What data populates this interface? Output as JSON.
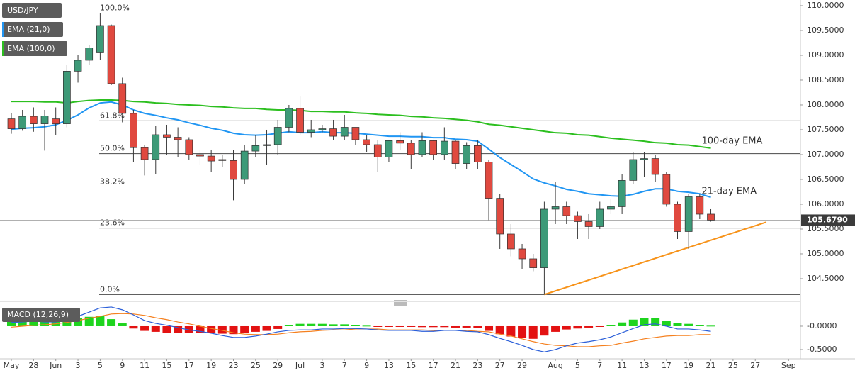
{
  "chart_data": [
    {
      "type": "candlestick",
      "title": "USD/JPY",
      "up_color": "#3d9a78",
      "down_color": "#e0493f",
      "wick_color": "#3a3a3a",
      "ylim": [
        104.114,
        110.114
      ],
      "yticks": [
        {
          "value": 110,
          "label": "110.0000"
        },
        {
          "value": 109.5,
          "label": "109.5000"
        },
        {
          "value": 109,
          "label": "109.0000"
        },
        {
          "value": 108.5,
          "label": "108.5000"
        },
        {
          "value": 108,
          "label": "108.0000"
        },
        {
          "value": 107.5,
          "label": "107.5000"
        },
        {
          "value": 107,
          "label": "107.0000"
        },
        {
          "value": 106.5,
          "label": "106.5000"
        },
        {
          "value": 106,
          "label": "106.0000"
        },
        {
          "value": 105.5,
          "label": "105.5000"
        },
        {
          "value": 105,
          "label": "105.0000"
        },
        {
          "value": 104.5,
          "label": "104.5000"
        }
      ],
      "last_price": {
        "value": 105.679,
        "label": "105.6790"
      },
      "open": [
        107.72,
        107.52,
        107.77,
        107.62,
        107.72,
        107.62,
        108.68,
        108.9,
        109.05,
        109.6,
        108.43,
        107.83,
        107.14,
        106.9,
        107.4,
        107.35,
        107.3,
        107.0,
        106.97,
        106.9,
        106.88,
        106.5,
        107.07,
        107.18,
        107.2,
        107.55,
        107.93,
        107.45,
        107.5,
        107.52,
        107.37,
        107.55,
        107.3,
        107.2,
        106.95,
        107.28,
        107.23,
        107.0,
        107.28,
        107.0,
        107.27,
        106.82,
        107.18,
        106.85,
        106.12,
        105.4,
        105.1,
        104.9,
        104.72,
        105.9,
        105.95,
        105.77,
        105.65,
        105.55,
        105.9,
        105.95,
        106.48,
        106.9,
        106.92,
        106.6,
        106.0,
        105.45,
        106.15,
        105.8,
        null,
        null,
        null,
        null,
        null,
        null,
        null
      ],
      "high": [
        107.84,
        107.9,
        107.95,
        107.9,
        107.95,
        108.8,
        109.0,
        109.2,
        109.85,
        109.62,
        108.55,
        107.9,
        107.2,
        107.58,
        107.6,
        107.55,
        107.35,
        107.1,
        107.1,
        107.0,
        107.1,
        107.2,
        107.4,
        107.5,
        107.7,
        108.0,
        108.17,
        107.7,
        107.6,
        107.7,
        107.8,
        107.55,
        107.4,
        107.3,
        107.3,
        107.45,
        107.3,
        107.45,
        107.3,
        107.55,
        107.3,
        107.25,
        107.3,
        106.9,
        106.2,
        105.6,
        105.2,
        105.0,
        106.05,
        106.45,
        106.05,
        105.85,
        105.8,
        106.05,
        106.1,
        106.6,
        107.05,
        107.05,
        107.0,
        106.65,
        106.05,
        106.2,
        106.2,
        105.9,
        null,
        null,
        null,
        null,
        null,
        null,
        null
      ],
      "low": [
        107.42,
        107.48,
        107.46,
        107.08,
        107.4,
        107.55,
        108.45,
        108.8,
        108.9,
        108.4,
        107.65,
        106.85,
        106.58,
        106.6,
        107.0,
        106.95,
        106.9,
        106.8,
        106.65,
        106.75,
        106.08,
        106.4,
        106.95,
        106.8,
        107.0,
        107.45,
        107.4,
        107.35,
        107.45,
        107.3,
        107.3,
        107.2,
        107.05,
        106.65,
        106.85,
        107.1,
        106.7,
        106.95,
        106.9,
        106.9,
        106.7,
        106.7,
        106.7,
        105.68,
        105.1,
        104.95,
        104.7,
        104.65,
        104.18,
        105.6,
        105.6,
        105.3,
        105.3,
        105.5,
        105.8,
        105.8,
        106.4,
        106.55,
        106.45,
        105.95,
        105.3,
        105.1,
        105.7,
        105.65,
        null,
        null,
        null,
        null,
        null,
        null,
        null
      ],
      "close": [
        107.52,
        107.77,
        107.62,
        107.78,
        107.62,
        108.68,
        108.9,
        109.15,
        109.6,
        108.43,
        107.83,
        107.14,
        106.9,
        107.4,
        107.35,
        107.3,
        107.0,
        106.97,
        106.87,
        106.88,
        106.5,
        107.07,
        107.18,
        107.2,
        107.55,
        107.93,
        107.45,
        107.5,
        107.52,
        107.37,
        107.55,
        107.3,
        107.2,
        106.95,
        107.28,
        107.23,
        107.0,
        107.28,
        107.0,
        107.27,
        106.82,
        107.18,
        106.85,
        106.12,
        105.4,
        105.1,
        104.9,
        104.72,
        105.9,
        105.95,
        105.77,
        105.65,
        105.55,
        105.9,
        105.95,
        106.48,
        106.9,
        106.92,
        106.6,
        106.0,
        105.45,
        106.15,
        105.8,
        105.68,
        null,
        null,
        null,
        null,
        null,
        null,
        null
      ],
      "series": [
        {
          "name": "EMA (21,0)",
          "color": "#2196f3",
          "values": [
            107.51,
            107.53,
            107.54,
            107.56,
            107.6,
            107.69,
            107.8,
            107.94,
            108.04,
            108.06,
            108.0,
            107.9,
            107.83,
            107.79,
            107.74,
            107.7,
            107.64,
            107.59,
            107.53,
            107.49,
            107.43,
            107.4,
            107.39,
            107.4,
            107.43,
            107.46,
            107.44,
            107.44,
            107.46,
            107.44,
            107.44,
            107.43,
            107.41,
            107.39,
            107.37,
            107.37,
            107.36,
            107.36,
            107.34,
            107.34,
            107.31,
            107.3,
            107.27,
            107.11,
            106.94,
            106.8,
            106.66,
            106.51,
            106.43,
            106.37,
            106.3,
            106.26,
            106.21,
            106.19,
            106.17,
            106.16,
            106.2,
            106.26,
            106.31,
            106.31,
            106.26,
            106.24,
            106.21,
            106.14,
            null,
            null,
            null,
            null,
            null,
            null,
            null
          ]
        },
        {
          "name": "EMA (100,0)",
          "color": "#2cbf1f",
          "values": [
            108.07,
            108.07,
            108.07,
            108.06,
            108.06,
            108.04,
            108.07,
            108.09,
            108.1,
            108.1,
            108.09,
            108.07,
            108.06,
            108.04,
            108.03,
            108.01,
            108.0,
            107.99,
            107.97,
            107.96,
            107.94,
            107.93,
            107.93,
            107.91,
            107.9,
            107.9,
            107.89,
            107.87,
            107.87,
            107.86,
            107.86,
            107.84,
            107.83,
            107.81,
            107.8,
            107.79,
            107.77,
            107.76,
            107.74,
            107.73,
            107.71,
            107.69,
            107.66,
            107.61,
            107.59,
            107.56,
            107.53,
            107.5,
            107.47,
            107.44,
            107.43,
            107.4,
            107.39,
            107.36,
            107.33,
            107.31,
            107.29,
            107.27,
            107.24,
            107.23,
            107.2,
            107.19,
            107.16,
            107.13,
            null,
            null,
            null,
            null,
            null,
            null,
            null
          ]
        }
      ],
      "fib_levels": [
        {
          "label": "100.0%",
          "price": 109.85
        },
        {
          "label": "61.8%",
          "price": 107.68
        },
        {
          "label": "50.0%",
          "price": 107.02
        },
        {
          "label": "38.2%",
          "price": 106.35
        },
        {
          "label": "23.6%",
          "price": 105.52
        },
        {
          "label": "0.0%",
          "price": 104.18
        }
      ],
      "fib_color": "#4a4a4a",
      "trendline": {
        "start": {
          "index": 48,
          "price": 104.18
        },
        "end": {
          "index": 68,
          "price": 105.64
        },
        "color": "#f7931a"
      },
      "annotations": [
        {
          "text": "100-day EMA",
          "color": "#2cbf1f"
        },
        {
          "text": "21-day EMA",
          "color": "#2196f3"
        }
      ]
    },
    {
      "type": "macd",
      "title": "MACD (12,26,9)",
      "ylim": [
        -0.682,
        0.424
      ],
      "yticks": [
        {
          "value": 0,
          "label": "-0.0000"
        },
        {
          "value": -0.5,
          "label": "-0.5000"
        }
      ],
      "categories": [
        "May",
        null,
        "28",
        null,
        "Jun",
        null,
        "3",
        null,
        "5",
        null,
        "9",
        null,
        "11",
        null,
        "15",
        null,
        "17",
        null,
        "19",
        null,
        "23",
        null,
        "25",
        null,
        "29",
        null,
        "Jul",
        null,
        "3",
        null,
        "7",
        null,
        "9",
        null,
        "13",
        null,
        "15",
        null,
        "17",
        null,
        "21",
        null,
        "23",
        null,
        "27",
        null,
        "29",
        null,
        null,
        "Aug",
        null,
        "5",
        null,
        "7",
        null,
        "11",
        null,
        "13",
        null,
        "17",
        null,
        "19",
        null,
        "21",
        null,
        "25",
        null,
        "27",
        null,
        null,
        "Sep"
      ],
      "histogram": {
        "pos_color": "#1ed41e",
        "neg_color": "#e31212",
        "values": [
          0.1,
          0.12,
          0.1,
          0.1,
          0.09,
          0.13,
          0.17,
          0.2,
          0.22,
          0.15,
          0.06,
          -0.05,
          -0.1,
          -0.12,
          -0.14,
          -0.14,
          -0.15,
          -0.15,
          -0.15,
          -0.16,
          -0.17,
          -0.14,
          -0.12,
          -0.1,
          -0.06,
          0.02,
          0.05,
          0.05,
          0.05,
          0.04,
          0.04,
          0.03,
          0.01,
          -0.01,
          -0.01,
          -0.01,
          -0.01,
          -0.02,
          -0.02,
          -0.02,
          -0.03,
          -0.03,
          -0.04,
          -0.1,
          -0.17,
          -0.22,
          -0.25,
          -0.27,
          -0.2,
          -0.12,
          -0.07,
          -0.05,
          -0.03,
          -0.01,
          0.02,
          0.08,
          0.14,
          0.18,
          0.17,
          0.12,
          0.07,
          0.05,
          0.03,
          0.01,
          null,
          null,
          null,
          null,
          null,
          null,
          null
        ]
      },
      "macd": {
        "color": "#2b5fd9",
        "values": [
          0.08,
          0.09,
          0.11,
          0.09,
          0.09,
          0.14,
          0.21,
          0.3,
          0.39,
          0.41,
          0.35,
          0.24,
          0.12,
          0.06,
          0.02,
          -0.03,
          -0.08,
          -0.11,
          -0.15,
          -0.2,
          -0.24,
          -0.24,
          -0.21,
          -0.17,
          -0.12,
          -0.09,
          -0.08,
          -0.08,
          -0.06,
          -0.06,
          -0.05,
          -0.05,
          -0.06,
          -0.08,
          -0.09,
          -0.09,
          -0.09,
          -0.11,
          -0.11,
          -0.09,
          -0.09,
          -0.11,
          -0.12,
          -0.18,
          -0.26,
          -0.33,
          -0.41,
          -0.5,
          -0.55,
          -0.5,
          -0.42,
          -0.36,
          -0.33,
          -0.29,
          -0.23,
          -0.14,
          -0.05,
          0.03,
          0.05,
          0.0,
          -0.06,
          -0.06,
          -0.08,
          -0.11,
          null,
          null,
          null,
          null,
          null,
          null,
          null
        ]
      },
      "signal": {
        "color": "#f5801f",
        "values": [
          -0.02,
          0.0,
          0.02,
          0.03,
          0.05,
          0.08,
          0.12,
          0.17,
          0.21,
          0.26,
          0.27,
          0.26,
          0.23,
          0.18,
          0.14,
          0.09,
          0.05,
          0.0,
          -0.05,
          -0.09,
          -0.14,
          -0.17,
          -0.18,
          -0.18,
          -0.17,
          -0.14,
          -0.12,
          -0.11,
          -0.09,
          -0.08,
          -0.08,
          -0.06,
          -0.06,
          -0.06,
          -0.08,
          -0.08,
          -0.08,
          -0.08,
          -0.09,
          -0.09,
          -0.09,
          -0.09,
          -0.11,
          -0.12,
          -0.17,
          -0.21,
          -0.27,
          -0.33,
          -0.38,
          -0.41,
          -0.42,
          -0.44,
          -0.44,
          -0.42,
          -0.41,
          -0.36,
          -0.32,
          -0.27,
          -0.24,
          -0.21,
          -0.2,
          -0.2,
          -0.18,
          -0.18,
          null,
          null,
          null,
          null,
          null,
          null,
          null
        ]
      }
    }
  ]
}
